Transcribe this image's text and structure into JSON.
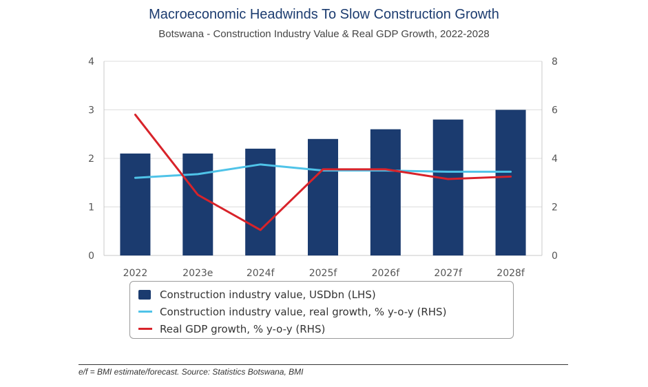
{
  "title": "Macroeconomic Headwinds To Slow Construction Growth",
  "subtitle": "Botswana - Construction Industry Value & Real GDP Growth, 2022-2028",
  "footer": "e/f = BMI estimate/forecast. Source: Statistics Botswana, BMI",
  "chart_data": {
    "type": "bar",
    "categories": [
      "2022",
      "2023e",
      "2024f",
      "2025f",
      "2026f",
      "2027f",
      "2028f"
    ],
    "series": [
      {
        "name": "Construction industry value, USDbn (LHS)",
        "type": "bar",
        "axis": "left",
        "color": "#1b3b6f",
        "values": [
          2.1,
          2.1,
          2.2,
          2.4,
          2.6,
          2.8,
          3.0
        ]
      },
      {
        "name": "Construction industry value, real growth, % y-o-y (RHS)",
        "type": "line",
        "axis": "right",
        "color": "#4fc3e8",
        "values": [
          3.2,
          3.35,
          3.75,
          3.5,
          3.5,
          3.45,
          3.45
        ]
      },
      {
        "name": "Real GDP growth, % y-o-y (RHS)",
        "type": "line",
        "axis": "right",
        "color": "#d8232a",
        "values": [
          5.8,
          2.5,
          1.05,
          3.55,
          3.55,
          3.15,
          3.25
        ]
      }
    ],
    "y_left": {
      "lim": [
        0,
        4
      ],
      "ticks": [
        "0",
        "1",
        "2",
        "3",
        "4"
      ]
    },
    "y_right": {
      "lim": [
        0,
        8
      ],
      "ticks": [
        "0",
        "2",
        "4",
        "6",
        "8"
      ]
    },
    "grid": true,
    "legend_position": "bottom"
  }
}
